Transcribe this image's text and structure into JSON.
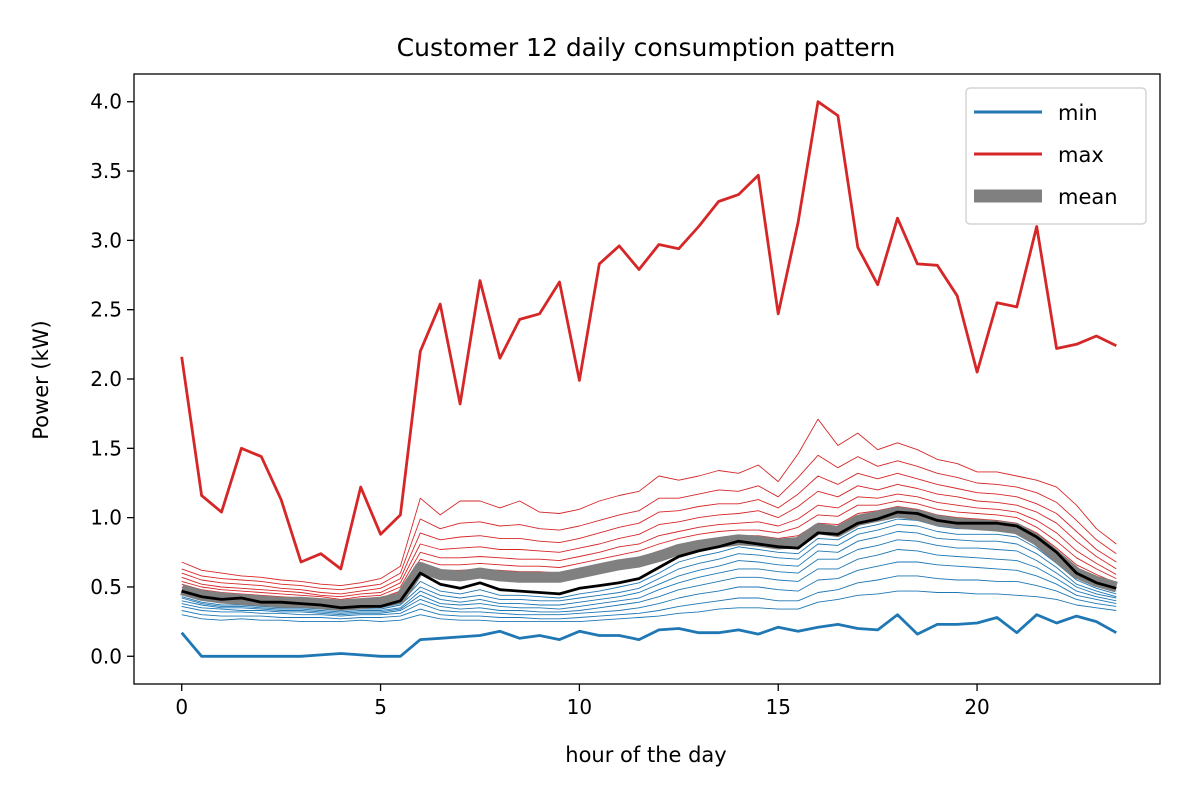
{
  "chart_data": {
    "type": "line",
    "title": "Customer 12 daily consumption pattern",
    "xlabel": "hour of the day",
    "ylabel": "Power (kW)",
    "xlim": [
      -1.2,
      24.6
    ],
    "ylim": [
      -0.2,
      4.2
    ],
    "xticks": [
      0,
      5,
      10,
      15,
      20
    ],
    "xtick_labels": [
      "0",
      "5",
      "10",
      "15",
      "20"
    ],
    "yticks": [
      0.0,
      0.5,
      1.0,
      1.5,
      2.0,
      2.5,
      3.0,
      3.5,
      4.0
    ],
    "ytick_labels": [
      "0.0",
      "0.5",
      "1.0",
      "1.5",
      "2.0",
      "2.5",
      "3.0",
      "3.5",
      "4.0"
    ],
    "grid": false,
    "legend_position": "top-right",
    "legend": [
      {
        "label": "min",
        "color": "#1f77b4",
        "style": "line"
      },
      {
        "label": "max",
        "color": "#d62728",
        "style": "line"
      },
      {
        "label": "mean",
        "color": "#808080",
        "style": "thick"
      }
    ],
    "colors": {
      "min": "#1f77b4",
      "max": "#d62728",
      "mean": "#808080",
      "median": "#000000"
    },
    "x": [
      0,
      0.5,
      1,
      1.5,
      2,
      2.5,
      3,
      3.5,
      4,
      4.5,
      5,
      5.5,
      6,
      6.5,
      7,
      7.5,
      8,
      8.5,
      9,
      9.5,
      10,
      10.5,
      11,
      11.5,
      12,
      12.5,
      13,
      13.5,
      14,
      14.5,
      15,
      15.5,
      16,
      16.5,
      17,
      17.5,
      18,
      18.5,
      19,
      19.5,
      20,
      20.5,
      21,
      21.5,
      22,
      22.5,
      23,
      23.5
    ],
    "series": [
      {
        "name": "min",
        "role": "min",
        "values": [
          0.17,
          0.0,
          0.0,
          0.0,
          0.0,
          0.0,
          0.0,
          0.01,
          0.02,
          0.01,
          0.0,
          0.0,
          0.12,
          0.13,
          0.14,
          0.15,
          0.18,
          0.13,
          0.15,
          0.12,
          0.18,
          0.15,
          0.15,
          0.12,
          0.19,
          0.2,
          0.17,
          0.17,
          0.19,
          0.16,
          0.21,
          0.18,
          0.21,
          0.23,
          0.2,
          0.19,
          0.3,
          0.16,
          0.23,
          0.23,
          0.24,
          0.28,
          0.17,
          0.3,
          0.24,
          0.29,
          0.25,
          0.17
        ]
      },
      {
        "name": "max",
        "role": "max",
        "values": [
          2.16,
          1.16,
          1.04,
          1.5,
          1.44,
          1.13,
          0.68,
          0.74,
          0.63,
          1.22,
          0.88,
          1.02,
          2.2,
          2.54,
          1.82,
          2.71,
          2.15,
          2.43,
          2.47,
          2.7,
          1.99,
          2.83,
          2.96,
          2.79,
          2.97,
          2.94,
          3.1,
          3.28,
          3.33,
          3.47,
          2.47,
          3.13,
          4.0,
          3.9,
          2.95,
          2.68,
          3.16,
          2.83,
          2.82,
          2.6,
          2.05,
          2.55,
          2.52,
          3.1,
          2.22,
          2.25,
          2.31,
          2.24
        ]
      },
      {
        "name": "mean",
        "role": "mean",
        "values": [
          0.48,
          0.44,
          0.42,
          0.41,
          0.4,
          0.39,
          0.39,
          0.38,
          0.37,
          0.38,
          0.39,
          0.42,
          0.64,
          0.59,
          0.58,
          0.6,
          0.58,
          0.57,
          0.57,
          0.57,
          0.6,
          0.63,
          0.66,
          0.68,
          0.72,
          0.77,
          0.8,
          0.82,
          0.84,
          0.83,
          0.81,
          0.82,
          0.92,
          0.9,
          0.98,
          1.01,
          1.04,
          1.02,
          0.98,
          0.96,
          0.95,
          0.94,
          0.92,
          0.84,
          0.72,
          0.6,
          0.54,
          0.5
        ]
      },
      {
        "name": "median",
        "role": "median",
        "values": [
          0.47,
          0.43,
          0.41,
          0.42,
          0.39,
          0.39,
          0.38,
          0.37,
          0.35,
          0.36,
          0.36,
          0.4,
          0.6,
          0.52,
          0.49,
          0.53,
          0.48,
          0.47,
          0.46,
          0.45,
          0.49,
          0.51,
          0.53,
          0.56,
          0.64,
          0.72,
          0.76,
          0.79,
          0.83,
          0.81,
          0.79,
          0.78,
          0.89,
          0.88,
          0.96,
          0.99,
          1.04,
          1.03,
          0.98,
          0.96,
          0.96,
          0.96,
          0.94,
          0.86,
          0.75,
          0.6,
          0.53,
          0.49
        ]
      },
      {
        "name": "",
        "role": "upper-band",
        "values": [
          0.68,
          0.62,
          0.6,
          0.58,
          0.57,
          0.55,
          0.54,
          0.52,
          0.51,
          0.53,
          0.56,
          0.65,
          1.14,
          1.02,
          1.12,
          1.12,
          1.07,
          1.12,
          1.04,
          1.03,
          1.06,
          1.12,
          1.16,
          1.19,
          1.3,
          1.27,
          1.3,
          1.34,
          1.32,
          1.38,
          1.26,
          1.46,
          1.71,
          1.52,
          1.61,
          1.49,
          1.54,
          1.49,
          1.42,
          1.39,
          1.33,
          1.33,
          1.3,
          1.27,
          1.22,
          1.09,
          0.92,
          0.81
        ]
      },
      {
        "name": "",
        "role": "upper-band",
        "values": [
          0.63,
          0.58,
          0.56,
          0.55,
          0.54,
          0.52,
          0.51,
          0.49,
          0.48,
          0.5,
          0.52,
          0.6,
          0.99,
          0.92,
          0.96,
          0.97,
          0.94,
          0.95,
          0.92,
          0.91,
          0.94,
          0.98,
          1.02,
          1.05,
          1.14,
          1.14,
          1.17,
          1.2,
          1.19,
          1.23,
          1.15,
          1.29,
          1.45,
          1.36,
          1.44,
          1.37,
          1.41,
          1.37,
          1.32,
          1.29,
          1.25,
          1.24,
          1.22,
          1.18,
          1.11,
          0.98,
          0.84,
          0.74
        ]
      },
      {
        "name": "",
        "role": "upper-band",
        "values": [
          0.6,
          0.55,
          0.53,
          0.52,
          0.51,
          0.49,
          0.48,
          0.46,
          0.45,
          0.47,
          0.49,
          0.56,
          0.89,
          0.84,
          0.86,
          0.87,
          0.85,
          0.85,
          0.83,
          0.82,
          0.85,
          0.89,
          0.93,
          0.96,
          1.04,
          1.05,
          1.08,
          1.1,
          1.1,
          1.13,
          1.07,
          1.17,
          1.3,
          1.24,
          1.32,
          1.28,
          1.32,
          1.28,
          1.24,
          1.21,
          1.18,
          1.17,
          1.15,
          1.1,
          1.03,
          0.9,
          0.77,
          0.68
        ]
      },
      {
        "name": "",
        "role": "upper-band",
        "values": [
          0.57,
          0.52,
          0.5,
          0.49,
          0.48,
          0.47,
          0.46,
          0.44,
          0.43,
          0.45,
          0.46,
          0.53,
          0.81,
          0.77,
          0.78,
          0.79,
          0.77,
          0.77,
          0.76,
          0.75,
          0.78,
          0.81,
          0.85,
          0.88,
          0.95,
          0.97,
          1.0,
          1.02,
          1.03,
          1.05,
          1.0,
          1.08,
          1.19,
          1.15,
          1.23,
          1.2,
          1.24,
          1.21,
          1.17,
          1.15,
          1.12,
          1.11,
          1.09,
          1.04,
          0.96,
          0.83,
          0.72,
          0.63
        ]
      },
      {
        "name": "",
        "role": "upper-band",
        "values": [
          0.54,
          0.5,
          0.48,
          0.47,
          0.46,
          0.45,
          0.44,
          0.43,
          0.41,
          0.43,
          0.44,
          0.5,
          0.75,
          0.71,
          0.71,
          0.72,
          0.71,
          0.7,
          0.7,
          0.69,
          0.72,
          0.75,
          0.79,
          0.81,
          0.87,
          0.9,
          0.93,
          0.95,
          0.96,
          0.97,
          0.94,
          0.99,
          1.09,
          1.07,
          1.15,
          1.14,
          1.17,
          1.15,
          1.11,
          1.09,
          1.07,
          1.06,
          1.04,
          0.98,
          0.89,
          0.76,
          0.67,
          0.59
        ]
      },
      {
        "name": "",
        "role": "upper-band",
        "values": [
          0.52,
          0.48,
          0.46,
          0.45,
          0.44,
          0.43,
          0.42,
          0.41,
          0.4,
          0.41,
          0.42,
          0.47,
          0.7,
          0.66,
          0.66,
          0.67,
          0.66,
          0.65,
          0.65,
          0.64,
          0.67,
          0.7,
          0.73,
          0.76,
          0.81,
          0.85,
          0.88,
          0.9,
          0.91,
          0.91,
          0.89,
          0.93,
          1.02,
          1.01,
          1.09,
          1.09,
          1.12,
          1.1,
          1.06,
          1.04,
          1.03,
          1.02,
          1.0,
          0.93,
          0.83,
          0.71,
          0.63,
          0.56
        ]
      },
      {
        "name": "",
        "role": "upper-band",
        "values": [
          0.5,
          0.46,
          0.44,
          0.43,
          0.42,
          0.41,
          0.41,
          0.4,
          0.39,
          0.4,
          0.41,
          0.45,
          0.66,
          0.62,
          0.62,
          0.63,
          0.62,
          0.61,
          0.61,
          0.6,
          0.63,
          0.66,
          0.69,
          0.71,
          0.76,
          0.8,
          0.83,
          0.85,
          0.87,
          0.87,
          0.85,
          0.87,
          0.96,
          0.95,
          1.03,
          1.05,
          1.08,
          1.06,
          1.02,
          1.0,
          0.99,
          0.98,
          0.96,
          0.89,
          0.78,
          0.66,
          0.59,
          0.53
        ]
      },
      {
        "name": "",
        "role": "lower-band",
        "values": [
          0.45,
          0.41,
          0.39,
          0.39,
          0.37,
          0.37,
          0.36,
          0.35,
          0.34,
          0.35,
          0.35,
          0.38,
          0.54,
          0.47,
          0.45,
          0.48,
          0.44,
          0.44,
          0.43,
          0.42,
          0.45,
          0.47,
          0.5,
          0.53,
          0.6,
          0.68,
          0.72,
          0.75,
          0.79,
          0.77,
          0.75,
          0.74,
          0.85,
          0.84,
          0.92,
          0.95,
          0.99,
          0.98,
          0.94,
          0.92,
          0.92,
          0.92,
          0.9,
          0.82,
          0.71,
          0.57,
          0.51,
          0.47
        ]
      },
      {
        "name": "",
        "role": "lower-band",
        "values": [
          0.43,
          0.39,
          0.37,
          0.37,
          0.36,
          0.35,
          0.35,
          0.34,
          0.33,
          0.34,
          0.34,
          0.37,
          0.5,
          0.44,
          0.42,
          0.44,
          0.41,
          0.41,
          0.4,
          0.4,
          0.42,
          0.44,
          0.46,
          0.49,
          0.56,
          0.63,
          0.67,
          0.7,
          0.74,
          0.73,
          0.71,
          0.7,
          0.81,
          0.8,
          0.88,
          0.91,
          0.95,
          0.94,
          0.9,
          0.88,
          0.88,
          0.88,
          0.86,
          0.78,
          0.67,
          0.55,
          0.49,
          0.45
        ]
      },
      {
        "name": "",
        "role": "lower-band",
        "values": [
          0.42,
          0.38,
          0.36,
          0.36,
          0.35,
          0.34,
          0.34,
          0.33,
          0.32,
          0.33,
          0.33,
          0.35,
          0.47,
          0.41,
          0.39,
          0.41,
          0.38,
          0.38,
          0.37,
          0.37,
          0.39,
          0.41,
          0.43,
          0.46,
          0.52,
          0.58,
          0.62,
          0.65,
          0.69,
          0.68,
          0.66,
          0.65,
          0.76,
          0.75,
          0.83,
          0.86,
          0.9,
          0.89,
          0.85,
          0.84,
          0.83,
          0.83,
          0.81,
          0.74,
          0.64,
          0.52,
          0.47,
          0.43
        ]
      },
      {
        "name": "",
        "role": "lower-band",
        "values": [
          0.4,
          0.37,
          0.35,
          0.35,
          0.34,
          0.33,
          0.33,
          0.32,
          0.31,
          0.32,
          0.32,
          0.34,
          0.44,
          0.38,
          0.37,
          0.38,
          0.36,
          0.35,
          0.35,
          0.34,
          0.36,
          0.38,
          0.4,
          0.42,
          0.48,
          0.53,
          0.57,
          0.6,
          0.63,
          0.63,
          0.61,
          0.6,
          0.7,
          0.7,
          0.77,
          0.8,
          0.84,
          0.83,
          0.8,
          0.78,
          0.78,
          0.77,
          0.76,
          0.69,
          0.6,
          0.5,
          0.45,
          0.42
        ]
      },
      {
        "name": "",
        "role": "lower-band",
        "values": [
          0.38,
          0.35,
          0.34,
          0.33,
          0.33,
          0.32,
          0.32,
          0.31,
          0.3,
          0.31,
          0.31,
          0.33,
          0.41,
          0.36,
          0.34,
          0.35,
          0.33,
          0.33,
          0.32,
          0.32,
          0.33,
          0.35,
          0.37,
          0.39,
          0.43,
          0.48,
          0.51,
          0.54,
          0.57,
          0.57,
          0.55,
          0.54,
          0.63,
          0.63,
          0.7,
          0.73,
          0.77,
          0.76,
          0.73,
          0.72,
          0.71,
          0.7,
          0.69,
          0.64,
          0.56,
          0.47,
          0.43,
          0.4
        ]
      },
      {
        "name": "",
        "role": "lower-band",
        "values": [
          0.36,
          0.33,
          0.32,
          0.32,
          0.31,
          0.31,
          0.3,
          0.3,
          0.29,
          0.3,
          0.3,
          0.31,
          0.38,
          0.33,
          0.32,
          0.32,
          0.31,
          0.3,
          0.3,
          0.3,
          0.31,
          0.32,
          0.33,
          0.35,
          0.38,
          0.42,
          0.45,
          0.47,
          0.5,
          0.5,
          0.48,
          0.47,
          0.55,
          0.56,
          0.62,
          0.65,
          0.68,
          0.68,
          0.66,
          0.65,
          0.64,
          0.63,
          0.62,
          0.58,
          0.52,
          0.44,
          0.41,
          0.38
        ]
      },
      {
        "name": "",
        "role": "lower-band",
        "values": [
          0.33,
          0.3,
          0.29,
          0.29,
          0.29,
          0.28,
          0.28,
          0.28,
          0.27,
          0.28,
          0.28,
          0.29,
          0.34,
          0.3,
          0.29,
          0.29,
          0.28,
          0.28,
          0.27,
          0.27,
          0.28,
          0.29,
          0.3,
          0.31,
          0.33,
          0.36,
          0.38,
          0.4,
          0.42,
          0.42,
          0.4,
          0.4,
          0.46,
          0.48,
          0.53,
          0.55,
          0.58,
          0.58,
          0.56,
          0.55,
          0.55,
          0.54,
          0.54,
          0.51,
          0.47,
          0.41,
          0.38,
          0.36
        ]
      },
      {
        "name": "",
        "role": "lower-band",
        "values": [
          0.3,
          0.27,
          0.26,
          0.27,
          0.26,
          0.26,
          0.25,
          0.25,
          0.25,
          0.26,
          0.25,
          0.26,
          0.3,
          0.27,
          0.26,
          0.26,
          0.25,
          0.25,
          0.25,
          0.25,
          0.25,
          0.26,
          0.27,
          0.28,
          0.29,
          0.31,
          0.32,
          0.34,
          0.35,
          0.35,
          0.34,
          0.34,
          0.39,
          0.41,
          0.44,
          0.45,
          0.47,
          0.47,
          0.46,
          0.46,
          0.45,
          0.45,
          0.44,
          0.43,
          0.41,
          0.37,
          0.35,
          0.33
        ]
      }
    ]
  }
}
